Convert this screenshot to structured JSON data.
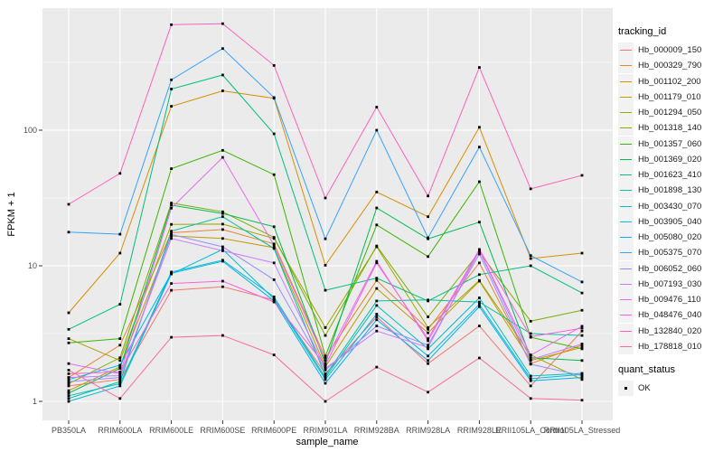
{
  "chart_data": {
    "type": "line",
    "title": "",
    "xlabel": "sample_name",
    "ylabel": "FPKM + 1",
    "yscale": "log10",
    "ylim": [
      0.7,
      770
    ],
    "grid": "on",
    "panel_bg": "#EBEBEB",
    "grid_color": "#FFFFFF",
    "axis_text_color": "#4D4D4D",
    "point_marker": "black-square",
    "legend_position": "right",
    "legend_title": "tracking_id",
    "quant_legend": {
      "title": "quant_status",
      "items": [
        {
          "label": "OK"
        }
      ]
    },
    "categories": [
      "PB350LA",
      "RRIM600LA",
      "RRIM600LE",
      "RRIM600SE",
      "RRIM600PE",
      "RRIM901LA",
      "RRIM928BA",
      "RRIM928LA",
      "RRIM928LE",
      "RRII105LA_Control",
      "RRII105LA_Stressed"
    ],
    "y_ticks": [
      {
        "label": "1",
        "value": 1
      },
      {
        "label": "10",
        "value": 10
      },
      {
        "label": "100",
        "value": 100
      }
    ],
    "y_minor_breaks": [
      3.162,
      31.62,
      316.2
    ],
    "series": [
      {
        "name": "Hb_000009_150",
        "color": "#F8766D",
        "values": [
          1.3,
          1.45,
          6.6,
          7.0,
          5.6,
          1.6,
          4.2,
          1.9,
          3.6,
          1.3,
          3.3
        ]
      },
      {
        "name": "Hb_000329_790",
        "color": "#EA8331",
        "values": [
          1.5,
          2.6,
          17.5,
          18.5,
          14.5,
          2.1,
          7.8,
          3.4,
          10.5,
          1.9,
          2.6
        ]
      },
      {
        "name": "Hb_001102_200",
        "color": "#D89000",
        "values": [
          4.5,
          12.4,
          150,
          195,
          172,
          10.1,
          35,
          23,
          105,
          11.3,
          12.4
        ]
      },
      {
        "name": "Hb_001179_010",
        "color": "#C09B00",
        "values": [
          1.2,
          1.8,
          16.6,
          15.9,
          13.6,
          1.8,
          6.8,
          3.2,
          7.7,
          2.0,
          2.5
        ]
      },
      {
        "name": "Hb_001294_050",
        "color": "#A3A500",
        "values": [
          2.9,
          2.0,
          20.2,
          20.3,
          15.9,
          3.5,
          13.8,
          3.5,
          7.8,
          2.2,
          1.45
        ]
      },
      {
        "name": "Hb_001318_140",
        "color": "#7CAE00",
        "values": [
          1.35,
          2.1,
          29,
          25,
          16.2,
          3.06,
          14,
          4.2,
          12.6,
          3.9,
          4.7
        ]
      },
      {
        "name": "Hb_001357_060",
        "color": "#39B600",
        "values": [
          2.7,
          2.9,
          52,
          71,
          47,
          2.16,
          20,
          11.7,
          41.7,
          2.97,
          2.44
        ]
      },
      {
        "name": "Hb_001369_020",
        "color": "#00BB4E",
        "values": [
          1.15,
          1.75,
          28,
          24.3,
          19.4,
          1.9,
          26.7,
          15.8,
          21,
          2.1,
          2.0
        ]
      },
      {
        "name": "Hb_001623_410",
        "color": "#00BF7D",
        "values": [
          3.4,
          5.2,
          201,
          255,
          94,
          6.6,
          8.1,
          5.5,
          8.6,
          10,
          6.3
        ]
      },
      {
        "name": "Hb_001898_130",
        "color": "#00C1A3",
        "values": [
          1.05,
          1.4,
          18,
          23,
          13.4,
          1.55,
          5.5,
          5.6,
          5.4,
          3.16,
          3.06
        ]
      },
      {
        "name": "Hb_003430_070",
        "color": "#00BFC4",
        "values": [
          1.1,
          1.35,
          9.0,
          11.0,
          5.9,
          1.5,
          5.1,
          2.44,
          5.8,
          1.54,
          1.61
        ]
      },
      {
        "name": "Hb_003905_040",
        "color": "#00BAE0",
        "values": [
          1.0,
          1.3,
          8.7,
          13.2,
          5.7,
          1.45,
          4.4,
          2.16,
          5.2,
          1.47,
          1.58
        ]
      },
      {
        "name": "Hb_005080_020",
        "color": "#00B0F6",
        "values": [
          1.45,
          1.85,
          8.8,
          10.8,
          5.5,
          1.36,
          4.0,
          2.0,
          5.0,
          1.42,
          1.5
        ]
      },
      {
        "name": "Hb_005375_070",
        "color": "#35A2FF",
        "values": [
          17.7,
          17.1,
          235,
          400,
          174,
          15.8,
          100,
          16.1,
          75,
          11.9,
          7.6
        ]
      },
      {
        "name": "Hb_006052_060",
        "color": "#9590FF",
        "values": [
          1.4,
          1.5,
          17,
          13.8,
          7.9,
          1.7,
          3.6,
          2.6,
          12.2,
          1.88,
          1.55
        ]
      },
      {
        "name": "Hb_007193_030",
        "color": "#C77CFF",
        "values": [
          1.5,
          1.55,
          15.9,
          12.9,
          10.5,
          1.75,
          3.3,
          2.5,
          12.9,
          2.03,
          2.65
        ]
      },
      {
        "name": "Hb_009476_110",
        "color": "#E76BF3",
        "values": [
          1.9,
          1.6,
          26.6,
          63,
          14.2,
          2.0,
          10.8,
          2.8,
          13.0,
          2.19,
          3.58
        ]
      },
      {
        "name": "Hb_048476_040",
        "color": "#FA62DB",
        "values": [
          1.6,
          1.65,
          7.4,
          7.7,
          5.4,
          1.85,
          10.5,
          2.9,
          13.2,
          3.0,
          3.47
        ]
      },
      {
        "name": "Hb_132840_020",
        "color": "#FF62BC",
        "values": [
          28.4,
          48,
          600,
          610,
          300,
          31.6,
          148,
          32.7,
          290,
          36.9,
          46.4
        ]
      },
      {
        "name": "Hb_178818_010",
        "color": "#FF6A98",
        "values": [
          1.7,
          1.05,
          2.97,
          3.06,
          2.2,
          1.0,
          1.79,
          1.17,
          2.09,
          1.05,
          1.02
        ]
      }
    ]
  }
}
